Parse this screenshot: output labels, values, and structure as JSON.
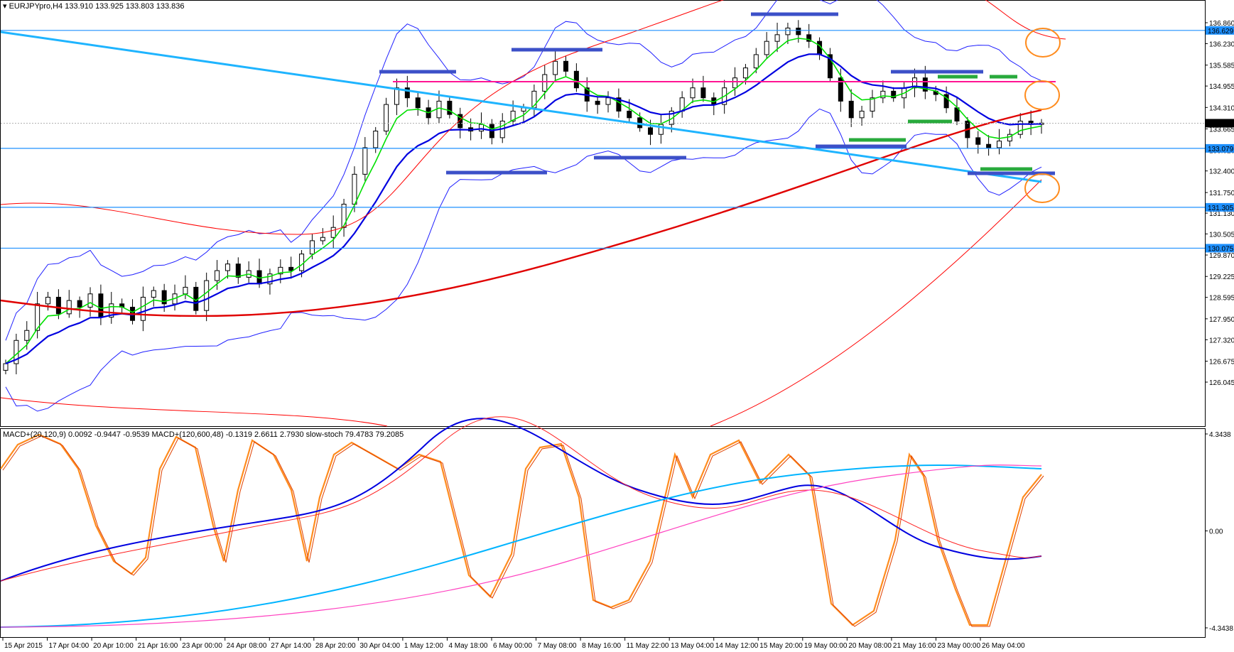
{
  "header": {
    "symbol": "EURJPYpro,H4",
    "ohlc": "133.910 133.925 133.803 133.836",
    "indicators": "MACD+(20,120,9) 0.0092 -0.9447 -0.9539  MACD+(120,600,48) -0.1319 2.6611 2.7930  slow-stoch 79.4783 79.2085"
  },
  "price_axis": {
    "ticks": [
      "136.860",
      "136.230",
      "135.585",
      "134.955",
      "134.310",
      "133.665",
      "133.020",
      "132.400",
      "131.750",
      "131.130",
      "130.505",
      "129.870",
      "129.225",
      "128.595",
      "127.950",
      "127.320",
      "126.675",
      "126.045"
    ],
    "current_price": "133.836",
    "level_labels": [
      "136.629",
      "133.079",
      "131.305",
      "130.075"
    ]
  },
  "indicator_axis": {
    "ticks": [
      "4.3438",
      "0.00",
      "-4.3438"
    ]
  },
  "time_axis": {
    "labels": [
      "15 Apr 2015",
      "17 Apr 04:00",
      "20 Apr 10:00",
      "21 Apr 16:00",
      "23 Apr 00:00",
      "24 Apr 08:00",
      "27 Apr 14:00",
      "28 Apr 20:00",
      "30 Apr 04:00",
      "1 May 12:00",
      "4 May 18:00",
      "6 May 00:00",
      "7 May 08:00",
      "8 May 16:00",
      "11 May 22:00",
      "13 May 04:00",
      "14 May 12:00",
      "15 May 20:00",
      "19 May 00:00",
      "20 May 08:00",
      "21 May 16:00",
      "23 May 00:00",
      "26 May 04:00"
    ]
  },
  "colors": {
    "background": "#ffffff",
    "candle": "#000000",
    "ema_fast": "#00e000",
    "ema_mid": "#0000e0",
    "ema_slow": "#e00000",
    "bollinger": "#2020ff",
    "envelope": "#ff0000",
    "support_resistance": "#1e90ff",
    "trendline": "#1eb4ff",
    "resistance_pink": "#ff1493",
    "blue_marks": "#3c50c8",
    "green_marks": "#28aa3c",
    "circles": "#ff8c1e",
    "stoch": "#ff8c1e",
    "macd_fast": "#0000e0",
    "macd_slow_signal": "#00b4ff",
    "macd_slow": "#ff40c0"
  },
  "chart_data": {
    "type": "candlestick",
    "symbol": "EURJPY",
    "timeframe": "H4",
    "price_range": [
      126.045,
      136.86
    ],
    "indicator_range": [
      -4.3438,
      4.3438
    ],
    "horizontal_levels": [
      136.629,
      133.079,
      131.305,
      130.075
    ],
    "current_price": 133.836,
    "close_path": [
      126.6,
      127.3,
      127.6,
      128.4,
      128.6,
      128.1,
      128.5,
      128.3,
      128.7,
      128.0,
      128.4,
      128.3,
      127.9,
      128.6,
      128.8,
      128.4,
      128.7,
      128.9,
      128.2,
      129.1,
      129.4,
      129.6,
      129.2,
      129.4,
      129.0,
      129.3,
      129.5,
      129.4,
      129.9,
      130.3,
      130.4,
      130.7,
      131.4,
      132.3,
      133.1,
      133.6,
      134.4,
      134.9,
      134.6,
      134.3,
      134.0,
      134.5,
      134.1,
      133.7,
      133.6,
      133.8,
      133.4,
      133.9,
      134.2,
      134.3,
      134.8,
      135.3,
      135.7,
      135.4,
      134.9,
      134.5,
      134.4,
      134.6,
      134.2,
      134.0,
      133.7,
      133.5,
      133.8,
      134.2,
      134.6,
      134.9,
      134.6,
      134.4,
      134.9,
      135.2,
      135.5,
      135.9,
      136.3,
      136.5,
      136.7,
      136.5,
      136.3,
      135.9,
      135.2,
      134.5,
      134.0,
      134.2,
      134.6,
      134.8,
      134.6,
      134.9,
      135.2,
      134.8,
      134.7,
      134.3,
      133.9,
      133.4,
      133.2,
      133.1,
      133.3,
      133.5,
      133.9,
      133.8,
      133.84
    ]
  }
}
